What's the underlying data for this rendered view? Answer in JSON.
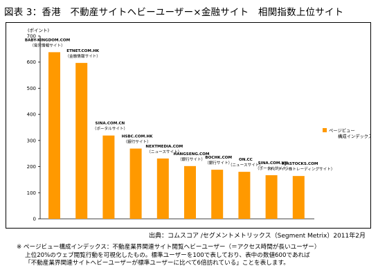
{
  "title": "図表 3：香港　不動産サイトヘビーユーザー×金融サイト　相関指数上位サイト",
  "source": "出典：コムスコア /セグメントメトリックス（Segment Metrix）2011年2月",
  "notes": [
    "※ ページビュー構成インデックス：不動産業界関連サイト閲覧ヘビーユーザー（＝アクセス時間が長いユーザー）",
    "上位20%のウェブ閲覧行動を可視化したもの。標準ユーザーを100で表しており、表中の数値600であれば",
    "「不動産業界関連サイトヘビーユーザーが標準ユーザーに比べて6倍訪れている」ことを表します。"
  ],
  "colors": {
    "bar": "#FF9900",
    "axis": "#000000"
  },
  "chart_data": {
    "type": "bar",
    "y_unit": "(ポイント)",
    "ylim": [
      0,
      700
    ],
    "y_ticks": [
      "0",
      "100",
      "200",
      "300",
      "400",
      "500",
      "600",
      "700"
    ],
    "grid": false,
    "legend": {
      "position": "right",
      "label": "ページビュー 構成インデックス"
    },
    "categories": [
      {
        "name": "BABY-KINGDOM.COM",
        "type": "（育児情報サイト）"
      },
      {
        "name": "ETNET.COM.HK",
        "type": "（金融情報サイト）"
      },
      {
        "name": "SINA.COM.CN",
        "type": "（ポータルサイト）"
      },
      {
        "name": "HSBC.COM.HK",
        "type": "（銀行サイト）"
      },
      {
        "name": "NEXTMEDIA.COM",
        "type": "（ニュースサイト）"
      },
      {
        "name": "HANGSENG.COM",
        "type": "（銀行サイト）"
      },
      {
        "name": "BOCHK.COM",
        "type": "（銀行サイト）"
      },
      {
        "name": "ON.CC",
        "type": "（ニュースサイト）"
      },
      {
        "name": "SINA.COM.HK",
        "type": "（ポータルサイト）"
      },
      {
        "name": "XJASTOCKS.COM",
        "type": "（オンライン株トレーディングサイト）"
      }
    ],
    "values": [
      638,
      597,
      319,
      269,
      231,
      202,
      188,
      180,
      167,
      164
    ]
  }
}
